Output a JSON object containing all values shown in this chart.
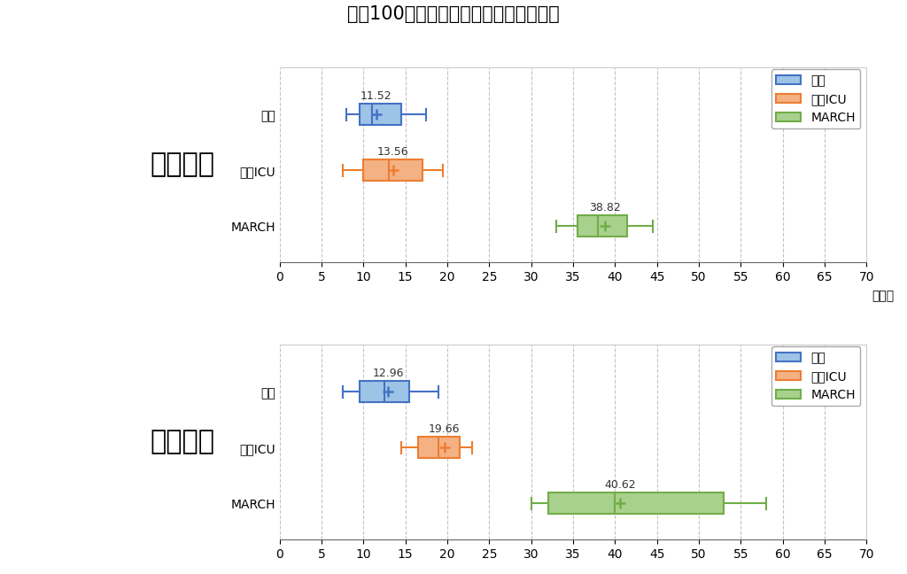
{
  "title": "生徒100名あたりの私立の合格実績比較",
  "schools": [
    "水戸一高",
    "土浦一高"
  ],
  "categories": [
    "早慶",
    "上理ICU",
    "MARCH"
  ],
  "xlabel_unit": "（件）",
  "xlim": [
    0,
    70
  ],
  "xticks": [
    0,
    5,
    10,
    15,
    20,
    25,
    30,
    35,
    40,
    45,
    50,
    55,
    60,
    65,
    70
  ],
  "colors": {
    "早慶": "#4472C4",
    "上理ICU": "#ED7D31",
    "MARCH": "#70AD47"
  },
  "face_colors": {
    "早慶": "#9DC3E6",
    "上理ICU": "#F4B183",
    "MARCH": "#A9D18E"
  },
  "mito": {
    "早慶": {
      "mean": 11.52,
      "q1": 9.5,
      "median": 11.0,
      "q3": 14.5,
      "whisker_low": 8.0,
      "whisker_high": 17.5
    },
    "上理ICU": {
      "mean": 13.56,
      "q1": 10.0,
      "median": 13.0,
      "q3": 17.0,
      "whisker_low": 7.5,
      "whisker_high": 19.5
    },
    "MARCH": {
      "mean": 38.82,
      "q1": 35.5,
      "median": 38.0,
      "q3": 41.5,
      "whisker_low": 33.0,
      "whisker_high": 44.5
    }
  },
  "tsuchiura": {
    "早慶": {
      "mean": 12.96,
      "q1": 9.5,
      "median": 12.5,
      "q3": 15.5,
      "whisker_low": 7.5,
      "whisker_high": 19.0
    },
    "上理ICU": {
      "mean": 19.66,
      "q1": 16.5,
      "median": 19.0,
      "q3": 21.5,
      "whisker_low": 14.5,
      "whisker_high": 23.0
    },
    "MARCH": {
      "mean": 40.62,
      "q1": 32.0,
      "median": 40.0,
      "q3": 53.0,
      "whisker_low": 30.0,
      "whisker_high": 58.0
    }
  },
  "school_label_fontsize": 22,
  "title_fontsize": 15,
  "tick_fontsize": 10,
  "legend_fontsize": 10,
  "mean_label_fontsize": 9
}
